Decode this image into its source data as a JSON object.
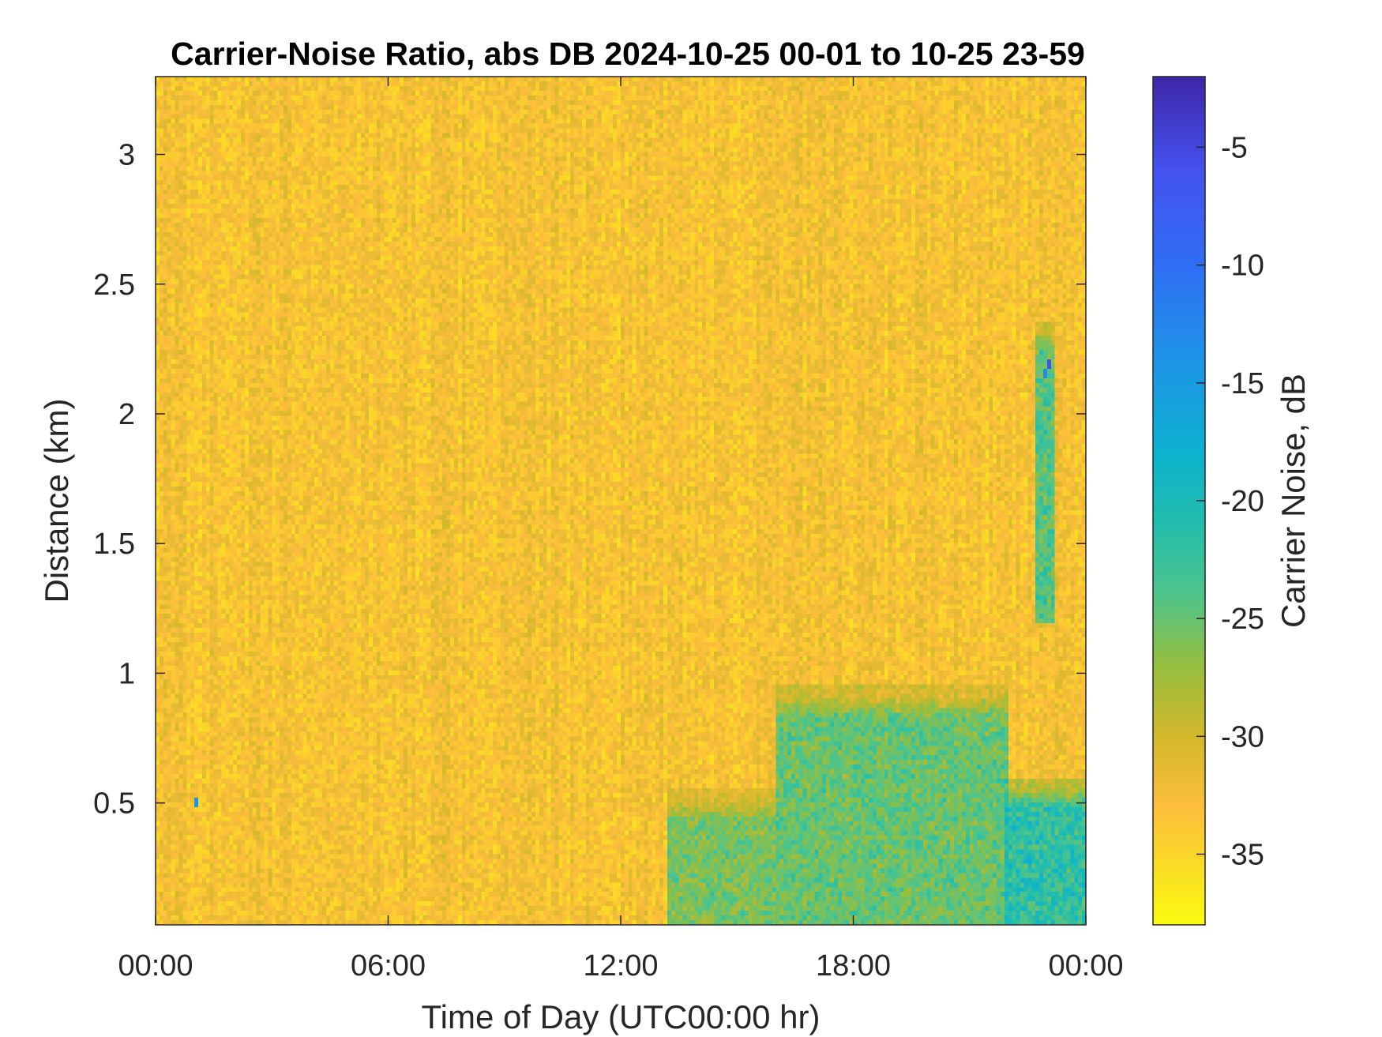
{
  "chart_data": {
    "type": "heatmap",
    "title": "Carrier-Noise Ratio, abs DB 2024-10-25 00-01 to 10-25 23-59",
    "xlabel": "Time of Day (UTC00:00 hr)",
    "ylabel": "Distance (km)",
    "colorbar_label": "Carrier Noise, dB",
    "x_unit": "hours",
    "xlim": [
      0,
      24
    ],
    "ylim": [
      0.03,
      3.3
    ],
    "clim": [
      -38,
      -2
    ],
    "x_ticks": [
      {
        "value": 0,
        "label": "00:00"
      },
      {
        "value": 6,
        "label": "06:00"
      },
      {
        "value": 12,
        "label": "12:00"
      },
      {
        "value": 18,
        "label": "18:00"
      },
      {
        "value": 24,
        "label": "00:00"
      }
    ],
    "y_ticks": [
      {
        "value": 0.5,
        "label": "0.5"
      },
      {
        "value": 1,
        "label": "1"
      },
      {
        "value": 1.5,
        "label": "1.5"
      },
      {
        "value": 2,
        "label": "2"
      },
      {
        "value": 2.5,
        "label": "2.5"
      },
      {
        "value": 3,
        "label": "3"
      }
    ],
    "colorbar_ticks": [
      {
        "value": -5,
        "label": "-5"
      },
      {
        "value": -10,
        "label": "-10"
      },
      {
        "value": -15,
        "label": "-15"
      },
      {
        "value": -20,
        "label": "-20"
      },
      {
        "value": -25,
        "label": "-25"
      },
      {
        "value": -30,
        "label": "-30"
      },
      {
        "value": -35,
        "label": "-35"
      }
    ],
    "colormap": "parula (reversed: yellow = low, dark blue = high)",
    "colormap_stops": [
      {
        "value": -38,
        "color": "#f9fb0e"
      },
      {
        "value": -33,
        "color": "#fcbd3c"
      },
      {
        "value": -30,
        "color": "#d2b82a"
      },
      {
        "value": -27,
        "color": "#96be3f"
      },
      {
        "value": -24,
        "color": "#4ec48b"
      },
      {
        "value": -21,
        "color": "#22bdab"
      },
      {
        "value": -18,
        "color": "#0cb2cf"
      },
      {
        "value": -14,
        "color": "#1e94e6"
      },
      {
        "value": -10,
        "color": "#2f6ef4"
      },
      {
        "value": -6,
        "color": "#4552ef"
      },
      {
        "value": -2,
        "color": "#3e26a8"
      }
    ],
    "background_level_db": -33,
    "regions": [
      {
        "description": "elevated carrier noise in lowest ~0.5 km",
        "x_range": [
          13.2,
          16
        ],
        "y_range": [
          0.03,
          0.55
        ],
        "level_db": -24
      },
      {
        "description": "elevated carrier noise in lowest ~0.9 km",
        "x_range": [
          16,
          22
        ],
        "y_range": [
          0.03,
          0.95
        ],
        "level_db": -23
      },
      {
        "description": "strongest near-surface noise",
        "x_range": [
          21.9,
          24
        ],
        "y_range": [
          0.03,
          0.6
        ],
        "level_db": -19
      },
      {
        "description": "thin vertical streak",
        "x_range": [
          22.7,
          23.2
        ],
        "y_range": [
          1.2,
          2.35
        ],
        "level_db": -22
      }
    ],
    "point_features": [
      {
        "x": 23.0,
        "y": 2.2,
        "level_db": -6
      },
      {
        "x": 22.9,
        "y": 2.17,
        "level_db": -13
      },
      {
        "x": 1.0,
        "y": 0.51,
        "level_db": -14
      }
    ]
  }
}
